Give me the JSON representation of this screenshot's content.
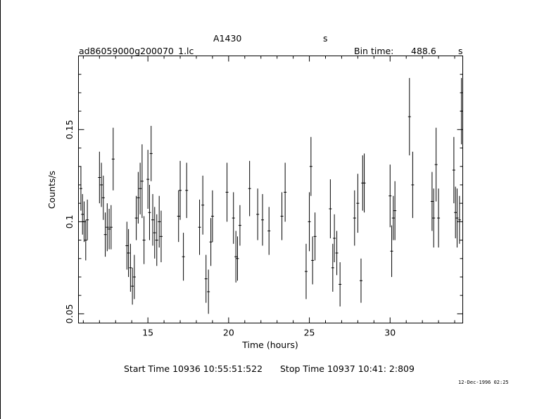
{
  "header": {
    "object": "A1430",
    "s_label": "s",
    "filename": "ad86059000g200070_1.lc",
    "bin_label": "Bin time:",
    "bin_value": "488.6",
    "bin_unit": "s"
  },
  "footer": {
    "start_time": "Start Time 10936 10:55:51:522",
    "stop_time": "Stop Time 10937 10:41: 2:809",
    "date_stamp": "12-Dec-1996 02:25"
  },
  "chart_data": {
    "type": "scatter",
    "xlabel": "Time (hours)",
    "ylabel": "Counts/s",
    "xlim": [
      10.7,
      34.5
    ],
    "ylim": [
      0.045,
      0.19
    ],
    "xticks": [
      15,
      20,
      25,
      30
    ],
    "yticks": [
      0.05,
      0.1,
      0.15
    ],
    "xtick_labels": [
      "15",
      "20",
      "25",
      "30"
    ],
    "ytick_labels": [
      "0.05",
      "0.1",
      "0.15"
    ],
    "grid": false,
    "colors": {
      "points": "#000000",
      "axes": "#000000"
    },
    "series": [
      {
        "points": [
          [
            10.85,
            0.118,
            0.012
          ],
          [
            10.95,
            0.104,
            0.011
          ],
          [
            11.05,
            0.1,
            0.011
          ],
          [
            11.15,
            0.09,
            0.011
          ],
          [
            11.25,
            0.101,
            0.011
          ],
          [
            12.0,
            0.124,
            0.014
          ],
          [
            12.12,
            0.12,
            0.012
          ],
          [
            12.24,
            0.113,
            0.012
          ],
          [
            12.36,
            0.093,
            0.012
          ],
          [
            12.48,
            0.097,
            0.013
          ],
          [
            12.6,
            0.096,
            0.011
          ],
          [
            12.72,
            0.097,
            0.012
          ],
          [
            12.85,
            0.134,
            0.017
          ],
          [
            13.7,
            0.087,
            0.013
          ],
          [
            13.8,
            0.083,
            0.013
          ],
          [
            13.92,
            0.075,
            0.013
          ],
          [
            14.04,
            0.065,
            0.01
          ],
          [
            14.16,
            0.07,
            0.012
          ],
          [
            14.28,
            0.102,
            0.012
          ],
          [
            14.4,
            0.113,
            0.014
          ],
          [
            14.52,
            0.118,
            0.014
          ],
          [
            14.64,
            0.122,
            0.02
          ],
          [
            14.76,
            0.09,
            0.013
          ],
          [
            15.0,
            0.123,
            0.016
          ],
          [
            15.1,
            0.105,
            0.015
          ],
          [
            15.2,
            0.137,
            0.015
          ],
          [
            15.3,
            0.101,
            0.014
          ],
          [
            15.42,
            0.094,
            0.014
          ],
          [
            15.55,
            0.09,
            0.014
          ],
          [
            15.7,
            0.1,
            0.014
          ],
          [
            15.82,
            0.092,
            0.014
          ],
          [
            16.9,
            0.103,
            0.014
          ],
          [
            17.0,
            0.117,
            0.016
          ],
          [
            17.2,
            0.081,
            0.013
          ],
          [
            17.4,
            0.117,
            0.015
          ],
          [
            18.2,
            0.097,
            0.015
          ],
          [
            18.4,
            0.109,
            0.016
          ],
          [
            18.6,
            0.069,
            0.013
          ],
          [
            18.75,
            0.062,
            0.012
          ],
          [
            18.9,
            0.089,
            0.013
          ],
          [
            19.0,
            0.103,
            0.014
          ],
          [
            19.9,
            0.116,
            0.016
          ],
          [
            20.3,
            0.102,
            0.014
          ],
          [
            20.45,
            0.081,
            0.014
          ],
          [
            20.55,
            0.08,
            0.012
          ],
          [
            20.7,
            0.098,
            0.011
          ],
          [
            21.3,
            0.118,
            0.015
          ],
          [
            21.8,
            0.104,
            0.014
          ],
          [
            22.1,
            0.101,
            0.014
          ],
          [
            22.5,
            0.095,
            0.013
          ],
          [
            23.3,
            0.103,
            0.013
          ],
          [
            23.5,
            0.116,
            0.016
          ],
          [
            24.8,
            0.073,
            0.015
          ],
          [
            25.0,
            0.1,
            0.016
          ],
          [
            25.1,
            0.13,
            0.016
          ],
          [
            25.2,
            0.079,
            0.013
          ],
          [
            25.35,
            0.092,
            0.013
          ],
          [
            26.3,
            0.107,
            0.016
          ],
          [
            26.45,
            0.075,
            0.013
          ],
          [
            26.55,
            0.091,
            0.013
          ],
          [
            26.7,
            0.083,
            0.012
          ],
          [
            26.9,
            0.066,
            0.012
          ],
          [
            27.8,
            0.102,
            0.015
          ],
          [
            28.0,
            0.11,
            0.016
          ],
          [
            28.2,
            0.068,
            0.012
          ],
          [
            28.3,
            0.121,
            0.015
          ],
          [
            28.4,
            0.121,
            0.016
          ],
          [
            30.0,
            0.114,
            0.017
          ],
          [
            30.1,
            0.084,
            0.014
          ],
          [
            30.2,
            0.102,
            0.012
          ],
          [
            30.3,
            0.106,
            0.016
          ],
          [
            31.2,
            0.157,
            0.021
          ],
          [
            31.4,
            0.12,
            0.018
          ],
          [
            32.6,
            0.111,
            0.016
          ],
          [
            32.7,
            0.102,
            0.016
          ],
          [
            32.85,
            0.131,
            0.02
          ],
          [
            33.0,
            0.102,
            0.016
          ],
          [
            33.95,
            0.128,
            0.018
          ],
          [
            34.05,
            0.105,
            0.014
          ],
          [
            34.15,
            0.102,
            0.016
          ],
          [
            34.3,
            0.101,
            0.013
          ],
          [
            34.42,
            0.16,
            0.018
          ]
        ]
      }
    ]
  }
}
